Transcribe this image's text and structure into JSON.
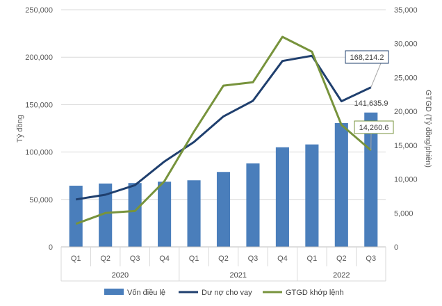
{
  "chart_data": {
    "type": "bar",
    "categories": [
      "Q1",
      "Q2",
      "Q3",
      "Q4",
      "Q1",
      "Q2",
      "Q3",
      "Q4",
      "Q1",
      "Q2",
      "Q3"
    ],
    "groups": [
      {
        "label": "2020",
        "count": 4
      },
      {
        "label": "2021",
        "count": 4
      },
      {
        "label": "2022",
        "count": 3
      }
    ],
    "series": [
      {
        "name": "Vốn điều lệ",
        "type": "bar",
        "axis": "left",
        "color": "#4a7ebb",
        "values": [
          64500,
          66800,
          67300,
          68700,
          70200,
          79000,
          88000,
          105000,
          108000,
          130500,
          141635.9
        ]
      },
      {
        "name": "Dư nợ cho vay",
        "type": "line",
        "axis": "left",
        "color": "#1f3f6e",
        "values": [
          50000,
          55000,
          65000,
          90000,
          110500,
          137500,
          154000,
          196000,
          201500,
          153500,
          168214.2
        ]
      },
      {
        "name": "GTGD khớp lệnh",
        "type": "line",
        "axis": "right",
        "color": "#77933c",
        "values": [
          3400,
          5000,
          5300,
          9700,
          17000,
          23800,
          24300,
          31000,
          28800,
          18000,
          14260.6
        ]
      }
    ],
    "ylabel": "Tỷ đồng",
    "y2label": "GTGD  (Tỷ đồng/phiên)",
    "ylim": [
      0,
      250000
    ],
    "y2lim": [
      0,
      35000
    ],
    "yticks": [
      "0",
      "50,000",
      "100,000",
      "150,000",
      "200,000",
      "250,000"
    ],
    "y2ticks": [
      "0",
      "5,000",
      "10,000",
      "15,000",
      "20,000",
      "25,000",
      "30,000",
      "35,000"
    ],
    "annotations": [
      {
        "text": "168,214.2",
        "series": 1,
        "index": 10,
        "border": "#1f3f6e"
      },
      {
        "text": "141,635.9",
        "series": 0,
        "index": 10,
        "border": "none"
      },
      {
        "text": "14,260.6",
        "series": 2,
        "index": 10,
        "border": "#77933c"
      }
    ],
    "legend_position": "bottom"
  }
}
